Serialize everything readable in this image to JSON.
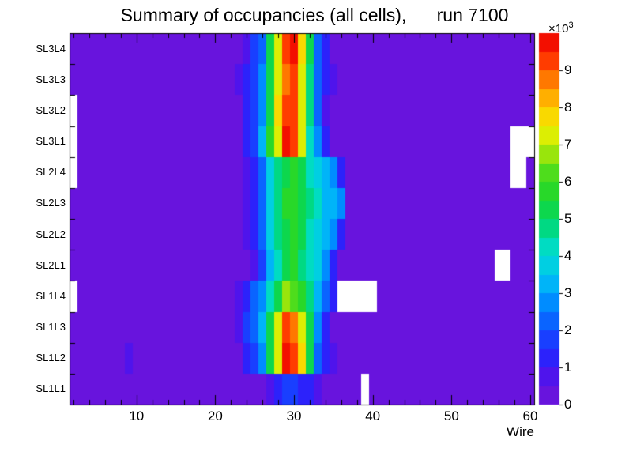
{
  "chart_data": {
    "type": "heatmap",
    "title": "Summary of occupancies (all cells),      run 7100",
    "xlabel": "Wire",
    "z_scale": {
      "base": "×10",
      "exp": "3"
    },
    "x_range": [
      1.5,
      60.5
    ],
    "wire_min": 2,
    "wire_max": 60,
    "x_major_ticks": [
      10,
      20,
      30,
      40,
      50,
      60
    ],
    "x_minor_step": 2,
    "z_range": [
      0,
      10
    ],
    "z_ticks": [
      0,
      1,
      2,
      3,
      4,
      5,
      6,
      7,
      8,
      9
    ],
    "levels": 20,
    "row_order": "top-to-bottom",
    "colors": {
      "background": "#ffffff",
      "frame": "#000000",
      "text": "#000000"
    },
    "palette_stops": [
      [
        0.0,
        "#7414D6"
      ],
      [
        0.09,
        "#4814F0"
      ],
      [
        0.14,
        "#2028FF"
      ],
      [
        0.2,
        "#1450FF"
      ],
      [
        0.25,
        "#0078FF"
      ],
      [
        0.3,
        "#00A0FF"
      ],
      [
        0.35,
        "#00C8F0"
      ],
      [
        0.42,
        "#00DCC8"
      ],
      [
        0.5,
        "#00D764"
      ],
      [
        0.56,
        "#1ED72D"
      ],
      [
        0.62,
        "#46DC1E"
      ],
      [
        0.68,
        "#A0E60A"
      ],
      [
        0.74,
        "#F0F000"
      ],
      [
        0.8,
        "#FFC800"
      ],
      [
        0.85,
        "#FF9600"
      ],
      [
        0.9,
        "#FF5A00"
      ],
      [
        0.95,
        "#FF1E00"
      ],
      [
        1.0,
        "#E60000"
      ]
    ],
    "rows": [
      {
        "label": "SL3L4",
        "base": 0.35,
        "gaps": [],
        "overrides": {
          "24": 0.9,
          "25": 1.5,
          "26": 2.4,
          "27": 5.0,
          "28": 7.2,
          "29": 9.0,
          "30": 9.6,
          "31": 7.8,
          "32": 5.0,
          "33": 2.2,
          "34": 1.0
        }
      },
      {
        "label": "SL3L3",
        "base": 0.35,
        "gaps": [],
        "overrides": {
          "23": 0.7,
          "24": 1.1,
          "25": 1.7,
          "26": 2.8,
          "27": 5.2,
          "28": 7.0,
          "29": 8.6,
          "30": 9.2,
          "31": 7.4,
          "32": 4.8,
          "33": 2.4,
          "34": 1.2,
          "35": 0.7
        }
      },
      {
        "label": "SL3L2",
        "base": 0.35,
        "gaps": [
          2
        ],
        "overrides": {
          "24": 1.0,
          "25": 1.6,
          "26": 2.6,
          "27": 5.4,
          "28": 7.6,
          "29": 9.4,
          "30": 9.2,
          "31": 7.2,
          "32": 4.6,
          "33": 2.0,
          "34": 0.9
        }
      },
      {
        "label": "SL3L1",
        "base": 0.35,
        "gaps": [
          2,
          58,
          59,
          60
        ],
        "overrides": {
          "24": 1.2,
          "25": 1.8,
          "26": 3.0,
          "27": 5.6,
          "28": 7.4,
          "29": 9.6,
          "30": 9.4,
          "31": 7.0,
          "32": 4.4,
          "33": 2.6,
          "34": 1.1
        }
      },
      {
        "label": "SL2L4",
        "base": 0.35,
        "gaps": [
          2,
          58,
          59
        ],
        "overrides": {
          "24": 0.9,
          "25": 1.4,
          "26": 2.2,
          "27": 3.6,
          "28": 4.6,
          "29": 5.4,
          "30": 5.8,
          "31": 5.2,
          "32": 4.4,
          "33": 3.8,
          "34": 3.2,
          "35": 2.8,
          "36": 1.0
        }
      },
      {
        "label": "SL2L3",
        "base": 0.35,
        "gaps": [],
        "overrides": {
          "24": 0.8,
          "25": 1.3,
          "26": 2.4,
          "27": 3.8,
          "28": 4.8,
          "29": 5.6,
          "30": 5.9,
          "31": 5.3,
          "32": 4.6,
          "33": 4.0,
          "34": 3.4,
          "35": 3.0,
          "36": 2.6
        }
      },
      {
        "label": "SL2L2",
        "base": 0.35,
        "gaps": [],
        "overrides": {
          "24": 0.8,
          "25": 1.2,
          "26": 2.2,
          "27": 3.5,
          "28": 4.5,
          "29": 5.3,
          "30": 5.7,
          "31": 5.0,
          "32": 4.3,
          "33": 3.7,
          "34": 3.1,
          "35": 2.7,
          "36": 1.2
        }
      },
      {
        "label": "SL2L1",
        "base": 0.35,
        "gaps": [
          56,
          57
        ],
        "overrides": {
          "25": 0.9,
          "26": 1.8,
          "27": 3.2,
          "28": 4.2,
          "29": 5.4,
          "30": 5.6,
          "31": 4.8,
          "32": 4.0,
          "33": 3.5,
          "34": 2.9,
          "35": 1.1
        }
      },
      {
        "label": "SL1L4",
        "base": 0.35,
        "gaps": [
          2,
          36,
          37,
          38,
          39,
          40
        ],
        "overrides": {
          "23": 0.8,
          "24": 1.4,
          "25": 2.0,
          "26": 2.8,
          "27": 4.2,
          "28": 5.4,
          "29": 6.6,
          "30": 6.4,
          "31": 5.6,
          "32": 4.6,
          "33": 3.2,
          "34": 2.0,
          "35": 1.0
        }
      },
      {
        "label": "SL1L3",
        "base": 0.35,
        "gaps": [],
        "overrides": {
          "23": 0.9,
          "24": 1.5,
          "25": 2.2,
          "26": 3.2,
          "27": 5.2,
          "28": 7.0,
          "29": 9.2,
          "30": 8.9,
          "31": 7.3,
          "32": 5.1,
          "33": 2.5,
          "34": 1.3
        }
      },
      {
        "label": "SL1L2",
        "base": 0.35,
        "gaps": [],
        "overrides": {
          "9": 0.9,
          "24": 1.2,
          "25": 1.8,
          "26": 2.7,
          "27": 5.0,
          "28": 7.4,
          "29": 9.5,
          "30": 9.3,
          "31": 7.9,
          "32": 5.3,
          "33": 2.3,
          "34": 1.1,
          "35": 0.7
        }
      },
      {
        "label": "SL1L1",
        "base": 0.35,
        "gaps": [
          39
        ],
        "overrides": {
          "27": 0.8,
          "28": 1.2,
          "29": 1.6,
          "30": 1.7,
          "31": 1.4,
          "32": 1.0,
          "33": 0.7
        }
      }
    ]
  }
}
